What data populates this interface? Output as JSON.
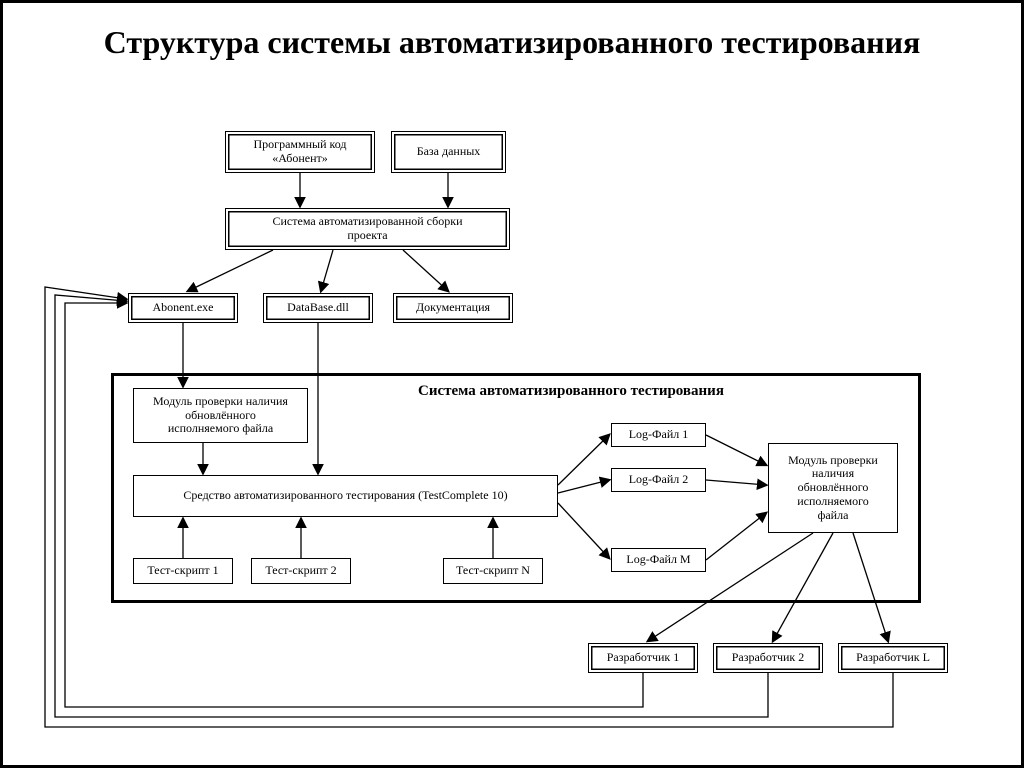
{
  "type": "flowchart",
  "title": "Структура системы автоматизированного тестирования",
  "background_color": "#ffffff",
  "border_color": "#000000",
  "font_family": "Times New Roman",
  "title_fontsize": 32,
  "node_fontsize_small": 12,
  "node_fontsize_medium": 13,
  "container_title_fontsize": 15,
  "container": {
    "title": "Система автоматизированного тестирования"
  },
  "nodes": {
    "n_code": {
      "label": "Программный код\n«Абонент»"
    },
    "n_db": {
      "label": "База данных"
    },
    "n_build": {
      "label": "Система автоматизированной сборки\nпроекта"
    },
    "n_exe": {
      "label": "Abonent.exe"
    },
    "n_dll": {
      "label": "DataBase.dll"
    },
    "n_doc": {
      "label": "Документация"
    },
    "n_check1": {
      "label": "Модуль проверки наличия\nобновлённого\nисполняемого файла"
    },
    "n_tool": {
      "label": "Средство автоматизированного тестирования (TestComplete 10)"
    },
    "n_ts1": {
      "label": "Тест-скрипт 1"
    },
    "n_ts2": {
      "label": "Тест-скрипт 2"
    },
    "n_tsn": {
      "label": "Тест-скрипт N"
    },
    "n_log1": {
      "label": "Log-Файл 1"
    },
    "n_log2": {
      "label": "Log-Файл 2"
    },
    "n_logm": {
      "label": "Log-Файл М"
    },
    "n_check2": {
      "label": "Модуль проверки\nналичия\nобновлённого\nисполняемого\nфайла"
    },
    "n_dev1": {
      "label": "Разработчик 1"
    },
    "n_dev2": {
      "label": "Разработчик 2"
    },
    "n_devl": {
      "label": "Разработчик L"
    }
  }
}
